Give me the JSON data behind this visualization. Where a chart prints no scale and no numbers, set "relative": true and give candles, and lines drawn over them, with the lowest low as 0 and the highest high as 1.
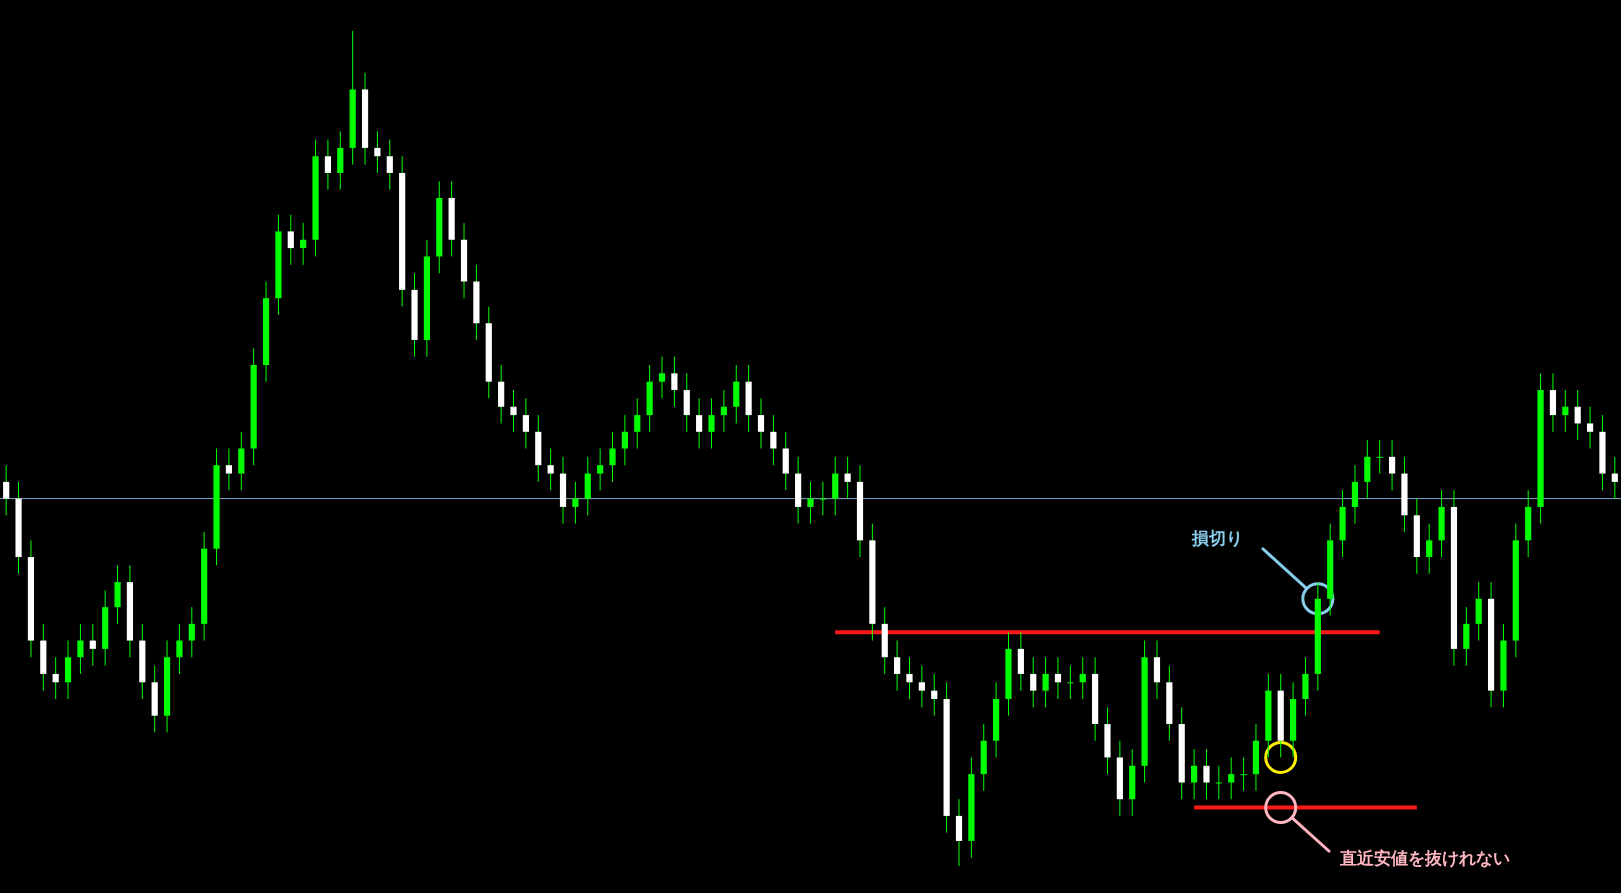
{
  "chart_data": {
    "type": "candlestick",
    "relative": true,
    "categories": [
      null,
      null,
      null,
      null,
      null,
      null,
      null,
      null,
      null,
      null,
      null,
      null,
      null,
      null,
      null,
      null,
      null,
      null,
      null,
      null,
      null,
      null,
      null,
      null,
      null,
      null,
      null,
      null,
      null,
      null,
      null,
      null,
      null,
      null,
      null,
      null,
      null,
      null,
      null,
      null,
      null,
      null,
      null,
      null,
      null,
      null,
      null,
      null,
      null,
      null,
      null,
      null,
      null,
      null,
      null,
      null,
      null,
      null,
      null,
      null,
      null,
      null,
      null,
      null,
      null,
      null,
      null,
      null,
      null,
      null,
      null,
      null,
      null,
      null,
      null,
      null,
      null,
      null,
      null,
      null,
      null,
      null,
      null,
      null,
      null,
      null,
      null,
      null,
      null,
      null,
      null,
      null,
      null,
      null,
      null,
      null,
      null,
      null,
      null,
      null,
      null,
      null,
      null,
      null,
      null,
      null,
      null,
      null,
      null,
      null,
      null,
      null,
      null,
      null,
      null,
      null,
      null,
      null,
      null,
      null,
      null,
      null,
      null,
      null,
      null,
      null,
      null,
      null,
      null,
      null,
      null
    ],
    "ohlc": [
      [
        0.46,
        0.48,
        0.42,
        0.44
      ],
      [
        0.44,
        0.46,
        0.35,
        0.37
      ],
      [
        0.37,
        0.39,
        0.25,
        0.27
      ],
      [
        0.27,
        0.29,
        0.21,
        0.23
      ],
      [
        0.23,
        0.25,
        0.2,
        0.22
      ],
      [
        0.22,
        0.27,
        0.2,
        0.25
      ],
      [
        0.25,
        0.29,
        0.23,
        0.27
      ],
      [
        0.27,
        0.29,
        0.24,
        0.26
      ],
      [
        0.26,
        0.33,
        0.24,
        0.31
      ],
      [
        0.31,
        0.36,
        0.29,
        0.34
      ],
      [
        0.34,
        0.36,
        0.25,
        0.27
      ],
      [
        0.27,
        0.29,
        0.2,
        0.22
      ],
      [
        0.22,
        0.24,
        0.16,
        0.18
      ],
      [
        0.18,
        0.27,
        0.16,
        0.25
      ],
      [
        0.25,
        0.29,
        0.23,
        0.27
      ],
      [
        0.27,
        0.31,
        0.25,
        0.29
      ],
      [
        0.29,
        0.4,
        0.27,
        0.38
      ],
      [
        0.38,
        0.5,
        0.36,
        0.48
      ],
      [
        0.48,
        0.5,
        0.45,
        0.47
      ],
      [
        0.47,
        0.52,
        0.45,
        0.5
      ],
      [
        0.5,
        0.62,
        0.48,
        0.6
      ],
      [
        0.6,
        0.7,
        0.58,
        0.68
      ],
      [
        0.68,
        0.78,
        0.66,
        0.76
      ],
      [
        0.76,
        0.78,
        0.72,
        0.74
      ],
      [
        0.74,
        0.77,
        0.72,
        0.75
      ],
      [
        0.75,
        0.87,
        0.73,
        0.85
      ],
      [
        0.85,
        0.87,
        0.81,
        0.83
      ],
      [
        0.83,
        0.88,
        0.81,
        0.86
      ],
      [
        0.86,
        1,
        0.84,
        0.93
      ],
      [
        0.93,
        0.95,
        0.84,
        0.86
      ],
      [
        0.86,
        0.88,
        0.83,
        0.85
      ],
      [
        0.85,
        0.87,
        0.81,
        0.83
      ],
      [
        0.83,
        0.85,
        0.67,
        0.69
      ],
      [
        0.69,
        0.71,
        0.61,
        0.63
      ],
      [
        0.63,
        0.75,
        0.61,
        0.73
      ],
      [
        0.73,
        0.82,
        0.71,
        0.8
      ],
      [
        0.8,
        0.82,
        0.73,
        0.75
      ],
      [
        0.75,
        0.77,
        0.68,
        0.7
      ],
      [
        0.7,
        0.72,
        0.63,
        0.65
      ],
      [
        0.65,
        0.67,
        0.56,
        0.58
      ],
      [
        0.58,
        0.6,
        0.53,
        0.55
      ],
      [
        0.55,
        0.57,
        0.52,
        0.54
      ],
      [
        0.54,
        0.56,
        0.5,
        0.52
      ],
      [
        0.52,
        0.54,
        0.46,
        0.48
      ],
      [
        0.48,
        0.5,
        0.45,
        0.47
      ],
      [
        0.47,
        0.49,
        0.41,
        0.43
      ],
      [
        0.43,
        0.46,
        0.41,
        0.44
      ],
      [
        0.44,
        0.49,
        0.42,
        0.47
      ],
      [
        0.47,
        0.5,
        0.45,
        0.48
      ],
      [
        0.48,
        0.52,
        0.46,
        0.5
      ],
      [
        0.5,
        0.54,
        0.48,
        0.52
      ],
      [
        0.52,
        0.56,
        0.5,
        0.54
      ],
      [
        0.54,
        0.6,
        0.52,
        0.58
      ],
      [
        0.58,
        0.61,
        0.56,
        0.59
      ],
      [
        0.59,
        0.61,
        0.55,
        0.57
      ],
      [
        0.57,
        0.59,
        0.52,
        0.54
      ],
      [
        0.54,
        0.56,
        0.5,
        0.52
      ],
      [
        0.52,
        0.56,
        0.5,
        0.54
      ],
      [
        0.54,
        0.57,
        0.52,
        0.55
      ],
      [
        0.55,
        0.6,
        0.53,
        0.58
      ],
      [
        0.58,
        0.6,
        0.52,
        0.54
      ],
      [
        0.54,
        0.56,
        0.5,
        0.52
      ],
      [
        0.52,
        0.54,
        0.48,
        0.5
      ],
      [
        0.5,
        0.52,
        0.45,
        0.47
      ],
      [
        0.47,
        0.49,
        0.41,
        0.43
      ],
      [
        0.43,
        0.46,
        0.41,
        0.44
      ],
      [
        0.44,
        0.46,
        0.42,
        0.44
      ],
      [
        0.44,
        0.49,
        0.42,
        0.47
      ],
      [
        0.47,
        0.49,
        0.44,
        0.46
      ],
      [
        0.46,
        0.48,
        0.37,
        0.39
      ],
      [
        0.39,
        0.41,
        0.27,
        0.29
      ],
      [
        0.29,
        0.31,
        0.23,
        0.25
      ],
      [
        0.25,
        0.27,
        0.21,
        0.23
      ],
      [
        0.23,
        0.25,
        0.2,
        0.22
      ],
      [
        0.22,
        0.24,
        0.19,
        0.21
      ],
      [
        0.21,
        0.23,
        0.18,
        0.2
      ],
      [
        0.2,
        0.22,
        0.04,
        0.06
      ],
      [
        0.06,
        0.08,
        0,
        0.03
      ],
      [
        0.03,
        0.13,
        0.01,
        0.11
      ],
      [
        0.11,
        0.17,
        0.09,
        0.15
      ],
      [
        0.15,
        0.22,
        0.13,
        0.2
      ],
      [
        0.2,
        0.28,
        0.18,
        0.26
      ],
      [
        0.26,
        0.28,
        0.21,
        0.23
      ],
      [
        0.23,
        0.25,
        0.19,
        0.21
      ],
      [
        0.21,
        0.25,
        0.19,
        0.23
      ],
      [
        0.23,
        0.25,
        0.2,
        0.22
      ],
      [
        0.22,
        0.24,
        0.2,
        0.22
      ],
      [
        0.22,
        0.25,
        0.2,
        0.23
      ],
      [
        0.23,
        0.25,
        0.15,
        0.17
      ],
      [
        0.17,
        0.19,
        0.11,
        0.13
      ],
      [
        0.13,
        0.15,
        0.06,
        0.08
      ],
      [
        0.08,
        0.14,
        0.06,
        0.12
      ],
      [
        0.12,
        0.27,
        0.1,
        0.25
      ],
      [
        0.25,
        0.27,
        0.2,
        0.22
      ],
      [
        0.22,
        0.24,
        0.15,
        0.17
      ],
      [
        0.17,
        0.19,
        0.08,
        0.1
      ],
      [
        0.1,
        0.14,
        0.08,
        0.12
      ],
      [
        0.12,
        0.14,
        0.08,
        0.1
      ],
      [
        0.1,
        0.12,
        0.08,
        0.1
      ],
      [
        0.1,
        0.13,
        0.08,
        0.11
      ],
      [
        0.11,
        0.13,
        0.09,
        0.11
      ],
      [
        0.11,
        0.17,
        0.09,
        0.15
      ],
      [
        0.15,
        0.23,
        0.13,
        0.21
      ],
      [
        0.21,
        0.23,
        0.13,
        0.15
      ],
      [
        0.15,
        0.22,
        0.13,
        0.2
      ],
      [
        0.2,
        0.25,
        0.18,
        0.23
      ],
      [
        0.23,
        0.34,
        0.21,
        0.32
      ],
      [
        0.32,
        0.41,
        0.3,
        0.39
      ],
      [
        0.39,
        0.45,
        0.37,
        0.43
      ],
      [
        0.43,
        0.48,
        0.41,
        0.46
      ],
      [
        0.46,
        0.51,
        0.44,
        0.49
      ],
      [
        0.49,
        0.51,
        0.47,
        0.49
      ],
      [
        0.49,
        0.51,
        0.45,
        0.47
      ],
      [
        0.47,
        0.49,
        0.4,
        0.42
      ],
      [
        0.42,
        0.44,
        0.35,
        0.37
      ],
      [
        0.37,
        0.41,
        0.35,
        0.39
      ],
      [
        0.39,
        0.45,
        0.37,
        0.43
      ],
      [
        0.43,
        0.45,
        0.24,
        0.26
      ],
      [
        0.26,
        0.31,
        0.24,
        0.29
      ],
      [
        0.29,
        0.34,
        0.27,
        0.32
      ],
      [
        0.32,
        0.34,
        0.19,
        0.21
      ],
      [
        0.21,
        0.29,
        0.19,
        0.27
      ],
      [
        0.27,
        0.41,
        0.25,
        0.39
      ],
      [
        0.39,
        0.45,
        0.37,
        0.43
      ],
      [
        0.43,
        0.59,
        0.41,
        0.57
      ],
      [
        0.57,
        0.59,
        0.52,
        0.54
      ],
      [
        0.54,
        0.57,
        0.52,
        0.55
      ],
      [
        0.55,
        0.57,
        0.51,
        0.53
      ],
      [
        0.53,
        0.55,
        0.5,
        0.52
      ],
      [
        0.52,
        0.54,
        0.45,
        0.47
      ],
      [
        0.47,
        0.49,
        0.44,
        0.46
      ]
    ],
    "series": [
      {
        "type": "line",
        "color": "#ff1a1a",
        "values": [
          null,
          null,
          null,
          null,
          null,
          null,
          null,
          null,
          null,
          null,
          null,
          null,
          null,
          null,
          null,
          null,
          null,
          null,
          null,
          null,
          null,
          null,
          null,
          null,
          null,
          null,
          null,
          null,
          null,
          null,
          null,
          null,
          null,
          null,
          null,
          null,
          null,
          null,
          null,
          null,
          null,
          null,
          null,
          null,
          null,
          null,
          null,
          null,
          null,
          null,
          null,
          null,
          null,
          null,
          null,
          null,
          null,
          null,
          null,
          null,
          null,
          null,
          null,
          null,
          null,
          null,
          null,
          0.28,
          0.28,
          0.28,
          0.28,
          0.28,
          0.28,
          0.28,
          0.28,
          0.28,
          0.28,
          0.28,
          0.28,
          0.28,
          0.28,
          0.28,
          0.28,
          0.28,
          0.28,
          0.28,
          0.28,
          0.28,
          0.28,
          0.28,
          0.28,
          0.28,
          0.28,
          0.28,
          0.28,
          0.28,
          0.28,
          0.28,
          0.28,
          0.28,
          0.28,
          0.28,
          0.28,
          0.28,
          0.28,
          0.28,
          0.28,
          0.28,
          0.28,
          0.28,
          0.28,
          0.28,
          null,
          null,
          null,
          null,
          null,
          null,
          null,
          null,
          null,
          null,
          null,
          null,
          null,
          null,
          null,
          null,
          null,
          null,
          null
        ]
      },
      {
        "type": "line",
        "color": "#ff1a1a",
        "values": [
          null,
          null,
          null,
          null,
          null,
          null,
          null,
          null,
          null,
          null,
          null,
          null,
          null,
          null,
          null,
          null,
          null,
          null,
          null,
          null,
          null,
          null,
          null,
          null,
          null,
          null,
          null,
          null,
          null,
          null,
          null,
          null,
          null,
          null,
          null,
          null,
          null,
          null,
          null,
          null,
          null,
          null,
          null,
          null,
          null,
          null,
          null,
          null,
          null,
          null,
          null,
          null,
          null,
          null,
          null,
          null,
          null,
          null,
          null,
          null,
          null,
          null,
          null,
          null,
          null,
          null,
          null,
          null,
          null,
          null,
          null,
          null,
          null,
          null,
          null,
          null,
          null,
          null,
          null,
          null,
          null,
          null,
          null,
          null,
          null,
          null,
          null,
          null,
          null,
          null,
          null,
          null,
          null,
          null,
          null,
          null,
          0.07,
          0.07,
          0.07,
          0.07,
          0.07,
          0.07,
          0.07,
          0.07,
          0.07,
          0.07,
          0.07,
          0.07,
          0.07,
          0.07,
          0.07,
          0.07,
          0.07,
          0.07,
          0.07,
          null,
          null,
          null,
          null,
          null,
          null,
          null,
          null,
          null,
          null,
          null,
          null,
          null,
          null,
          null,
          null
        ]
      }
    ],
    "ref_lines": [
      {
        "axis": "y",
        "value": 0.44,
        "color": "#7fa7c9"
      }
    ],
    "annotations": [
      "損切り",
      "直近安値を抜けれない"
    ]
  }
}
